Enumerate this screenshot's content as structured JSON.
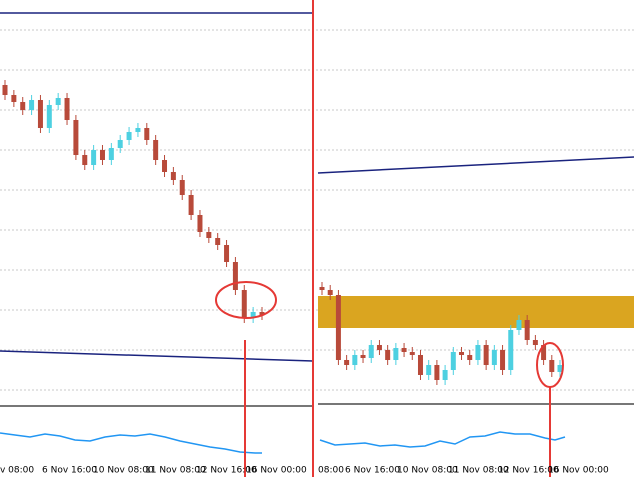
{
  "chart_data": [
    {
      "type": "candlestick",
      "x_labels": [
        "v 08:00",
        "6 Nov 16:00",
        "10 Nov 08:00",
        "11 Nov 08:00",
        "12 Nov 16:00",
        "16 Nov 00:00"
      ],
      "open": [
        320,
        310,
        303,
        295,
        305,
        277,
        300,
        307,
        285,
        250,
        240,
        255,
        245,
        257,
        265,
        273,
        277,
        265,
        245,
        233,
        225,
        210,
        190,
        173,
        167,
        160,
        143,
        115,
        87,
        93
      ],
      "high": [
        325,
        315,
        308,
        310,
        310,
        305,
        312,
        312,
        290,
        255,
        260,
        260,
        262,
        270,
        278,
        282,
        282,
        270,
        250,
        238,
        230,
        215,
        195,
        178,
        172,
        165,
        148,
        120,
        98,
        98
      ],
      "low": [
        305,
        298,
        290,
        290,
        272,
        272,
        295,
        280,
        245,
        235,
        235,
        240,
        240,
        252,
        260,
        268,
        260,
        240,
        228,
        220,
        205,
        185,
        168,
        162,
        155,
        138,
        110,
        82,
        82,
        85
      ],
      "close": [
        310,
        303,
        295,
        305,
        277,
        300,
        307,
        285,
        250,
        240,
        255,
        245,
        257,
        265,
        273,
        277,
        265,
        245,
        233,
        225,
        210,
        190,
        173,
        167,
        160,
        143,
        115,
        87,
        93,
        90
      ],
      "up_color": "#4dd0e1",
      "down_color": "#b84a3a",
      "ylim": [
        0,
        405
      ]
    },
    {
      "type": "candlestick",
      "x_labels": [
        "08:00",
        "6 Nov 16:00",
        "10 Nov 08:00",
        "11 Nov 08:00",
        "12 Nov 16:00",
        "16 Nov 00:00"
      ],
      "open": [
        118,
        115,
        110,
        45,
        40,
        50,
        47,
        60,
        55,
        45,
        57,
        53,
        50,
        30,
        40,
        25,
        35,
        53,
        50,
        45,
        60,
        40,
        55,
        35,
        75,
        85,
        65,
        60,
        45,
        33
      ],
      "high": [
        123,
        120,
        115,
        50,
        55,
        55,
        65,
        65,
        60,
        62,
        62,
        58,
        55,
        45,
        45,
        40,
        58,
        58,
        55,
        65,
        65,
        60,
        60,
        80,
        90,
        90,
        70,
        65,
        50,
        45
      ],
      "low": [
        110,
        105,
        40,
        35,
        35,
        42,
        42,
        50,
        40,
        40,
        48,
        45,
        25,
        25,
        20,
        20,
        30,
        45,
        40,
        40,
        35,
        35,
        30,
        30,
        70,
        60,
        55,
        40,
        28,
        28
      ],
      "close": [
        115,
        110,
        45,
        40,
        50,
        47,
        60,
        55,
        45,
        57,
        53,
        50,
        30,
        40,
        25,
        35,
        53,
        50,
        45,
        60,
        40,
        55,
        35,
        75,
        85,
        65,
        60,
        45,
        33,
        40
      ],
      "up_color": "#4dd0e1",
      "down_color": "#b84a3a",
      "ylim": [
        0,
        405
      ]
    }
  ]
}
